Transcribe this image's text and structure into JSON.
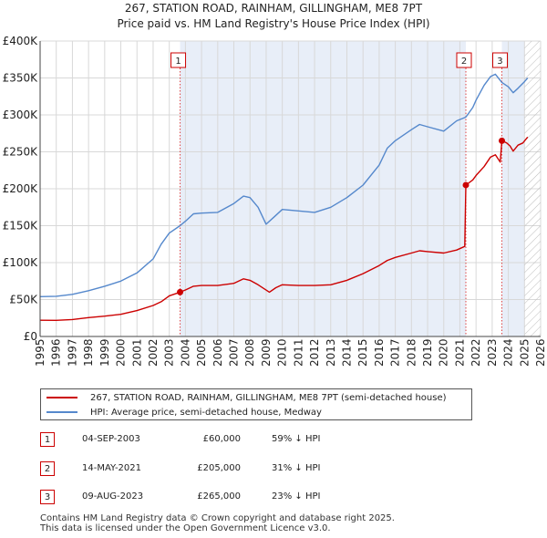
{
  "title_line1": "267, STATION ROAD, RAINHAM, GILLINGHAM, ME8 7PT",
  "title_line2": "Price paid vs. HM Land Registry's House Price Index (HPI)",
  "chart_data": {
    "type": "line",
    "title": "267, STATION ROAD, RAINHAM, GILLINGHAM, ME8 7PT — Price paid vs. HM Land Registry's House Price Index (HPI)",
    "xlim": [
      1995,
      2026
    ],
    "ylim": [
      0,
      400000
    ],
    "x_ticks": [
      1995,
      1996,
      1997,
      1998,
      1999,
      2000,
      2001,
      2002,
      2003,
      2004,
      2005,
      2006,
      2007,
      2008,
      2009,
      2010,
      2011,
      2012,
      2013,
      2014,
      2015,
      2016,
      2017,
      2018,
      2019,
      2020,
      2021,
      2022,
      2023,
      2024,
      2025,
      2026
    ],
    "y_ticks": [
      {
        "value": 0,
        "label": "£0"
      },
      {
        "value": 50000,
        "label": "£50K"
      },
      {
        "value": 100000,
        "label": "£100K"
      },
      {
        "value": 150000,
        "label": "£150K"
      },
      {
        "value": 200000,
        "label": "£200K"
      },
      {
        "value": 250000,
        "label": "£250K"
      },
      {
        "value": 300000,
        "label": "£300K"
      },
      {
        "value": 350000,
        "label": "£350K"
      },
      {
        "value": 400000,
        "label": "£400K"
      }
    ],
    "shaded_ranges": [
      {
        "from": 2003.67,
        "to": 2021.37
      },
      {
        "from": 2023.6,
        "to": 2025.0
      }
    ],
    "forecast_hatch_from": 2025.0,
    "series": [
      {
        "name": "267, STATION ROAD, RAINHAM, GILLINGHAM, ME8 7PT (semi-detached house)",
        "color": "#cc0000",
        "points": [
          [
            1995.0,
            22000
          ],
          [
            1996.0,
            21800
          ],
          [
            1997.0,
            23000
          ],
          [
            1998.0,
            25500
          ],
          [
            1999.0,
            27500
          ],
          [
            2000.0,
            30000
          ],
          [
            2001.0,
            35000
          ],
          [
            2002.0,
            42000
          ],
          [
            2002.5,
            47000
          ],
          [
            2003.0,
            55000
          ],
          [
            2003.67,
            60000
          ],
          [
            2004.0,
            63000
          ],
          [
            2004.5,
            68000
          ],
          [
            2005.0,
            69000
          ],
          [
            2006.0,
            69000
          ],
          [
            2007.0,
            72000
          ],
          [
            2007.6,
            78000
          ],
          [
            2008.0,
            76000
          ],
          [
            2008.5,
            70000
          ],
          [
            2009.2,
            60000
          ],
          [
            2009.6,
            66000
          ],
          [
            2010.0,
            70000
          ],
          [
            2011.0,
            69000
          ],
          [
            2012.0,
            69000
          ],
          [
            2013.0,
            70000
          ],
          [
            2014.0,
            76000
          ],
          [
            2015.0,
            85000
          ],
          [
            2016.0,
            96000
          ],
          [
            2016.5,
            103000
          ],
          [
            2017.0,
            107000
          ],
          [
            2018.0,
            113000
          ],
          [
            2018.5,
            116000
          ],
          [
            2019.0,
            115000
          ],
          [
            2020.0,
            113000
          ],
          [
            2020.8,
            117000
          ],
          [
            2021.3,
            122000
          ],
          [
            2021.37,
            205000
          ],
          [
            2021.8,
            212000
          ],
          [
            2022.0,
            218000
          ],
          [
            2022.5,
            230000
          ],
          [
            2022.9,
            243000
          ],
          [
            2023.2,
            246000
          ],
          [
            2023.5,
            236000
          ],
          [
            2023.6,
            265000
          ],
          [
            2023.9,
            262000
          ],
          [
            2024.1,
            258000
          ],
          [
            2024.3,
            251000
          ],
          [
            2024.6,
            259000
          ],
          [
            2024.9,
            262000
          ],
          [
            2025.2,
            270000
          ]
        ]
      },
      {
        "name": "HPI: Average price, semi-detached house, Medway",
        "color": "#5588cc",
        "points": [
          [
            1995.0,
            54000
          ],
          [
            1996.0,
            54500
          ],
          [
            1997.0,
            57000
          ],
          [
            1998.0,
            62000
          ],
          [
            1999.0,
            68000
          ],
          [
            2000.0,
            75000
          ],
          [
            2001.0,
            86000
          ],
          [
            2002.0,
            105000
          ],
          [
            2002.5,
            125000
          ],
          [
            2003.0,
            140000
          ],
          [
            2003.67,
            150000
          ],
          [
            2004.0,
            156000
          ],
          [
            2004.5,
            166000
          ],
          [
            2005.0,
            167000
          ],
          [
            2006.0,
            168000
          ],
          [
            2007.0,
            180000
          ],
          [
            2007.6,
            190000
          ],
          [
            2008.0,
            188000
          ],
          [
            2008.5,
            175000
          ],
          [
            2009.0,
            152000
          ],
          [
            2009.5,
            162000
          ],
          [
            2010.0,
            172000
          ],
          [
            2011.0,
            170000
          ],
          [
            2012.0,
            168000
          ],
          [
            2013.0,
            175000
          ],
          [
            2014.0,
            188000
          ],
          [
            2015.0,
            205000
          ],
          [
            2016.0,
            232000
          ],
          [
            2016.5,
            255000
          ],
          [
            2017.0,
            265000
          ],
          [
            2018.0,
            280000
          ],
          [
            2018.5,
            287000
          ],
          [
            2019.0,
            284000
          ],
          [
            2020.0,
            278000
          ],
          [
            2020.8,
            292000
          ],
          [
            2021.37,
            297000
          ],
          [
            2021.8,
            310000
          ],
          [
            2022.0,
            320000
          ],
          [
            2022.5,
            340000
          ],
          [
            2022.9,
            352000
          ],
          [
            2023.2,
            355000
          ],
          [
            2023.6,
            344000
          ],
          [
            2024.0,
            338000
          ],
          [
            2024.3,
            330000
          ],
          [
            2024.6,
            336000
          ],
          [
            2025.0,
            345000
          ],
          [
            2025.2,
            350000
          ]
        ]
      }
    ],
    "markers": [
      {
        "label": "1",
        "x": 2003.67,
        "y": 60000
      },
      {
        "label": "2",
        "x": 2021.37,
        "y": 205000
      },
      {
        "label": "3",
        "x": 2023.6,
        "y": 265000
      }
    ]
  },
  "legend": [
    {
      "label": "267, STATION ROAD, RAINHAM, GILLINGHAM, ME8 7PT (semi-detached house)",
      "color": "#cc0000"
    },
    {
      "label": "HPI: Average price, semi-detached house, Medway",
      "color": "#5588cc"
    }
  ],
  "transactions": [
    {
      "num": "1",
      "date": "04-SEP-2003",
      "price": "£60,000",
      "hpi": "59% ↓ HPI"
    },
    {
      "num": "2",
      "date": "14-MAY-2021",
      "price": "£205,000",
      "hpi": "31% ↓ HPI"
    },
    {
      "num": "3",
      "date": "09-AUG-2023",
      "price": "£265,000",
      "hpi": "23% ↓ HPI"
    }
  ],
  "footer": {
    "line1": "Contains HM Land Registry data © Crown copyright and database right 2025.",
    "line2": "This data is licensed under the Open Government Licence v3.0."
  }
}
